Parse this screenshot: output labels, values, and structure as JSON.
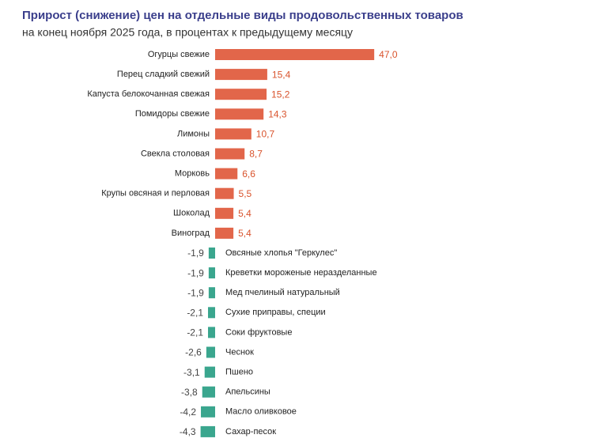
{
  "chart_data": {
    "type": "bar",
    "orientation": "horizontal",
    "title": "Прирост (снижение) цен на отдельные виды продовольственных товаров",
    "subtitle": "на конец ноября 2025 года, в процентах к предыдущему месяцу",
    "categories": [
      "Огурцы свежие",
      "Перец сладкий свежий",
      "Капуста белокочанная свежая",
      "Помидоры свежие",
      "Лимоны",
      "Свекла столовая",
      "Морковь",
      "Крупы овсяная и перловая",
      "Шоколад",
      "Виноград",
      "Овсяные хлопья \"Геркулес\"",
      "Креветки мороженые неразделанные",
      "Мед пчелиный натуральный",
      "Сухие приправы, специи",
      "Соки фруктовые",
      "Чеснок",
      "Пшено",
      "Апельсины",
      "Масло оливковое",
      "Сахар-песок"
    ],
    "values": [
      47.0,
      15.4,
      15.2,
      14.3,
      10.7,
      8.7,
      6.6,
      5.5,
      5.4,
      5.4,
      -1.9,
      -1.9,
      -1.9,
      -2.1,
      -2.1,
      -2.6,
      -3.1,
      -3.8,
      -4.2,
      -4.3
    ],
    "value_labels": [
      "47,0",
      "15,4",
      "15,2",
      "14,3",
      "10,7",
      "8,7",
      "6,6",
      "5,5",
      "5,4",
      "5,4",
      "-1,9",
      "-1,9",
      "-1,9",
      "-2,1",
      "-2,1",
      "-2,6",
      "-3,1",
      "-3,8",
      "-4,2",
      "-4,3"
    ],
    "positive_color": "#e2664a",
    "negative_color": "#3aa68e",
    "positive_label_color": "#d9532c",
    "negative_label_color": "#444444"
  }
}
